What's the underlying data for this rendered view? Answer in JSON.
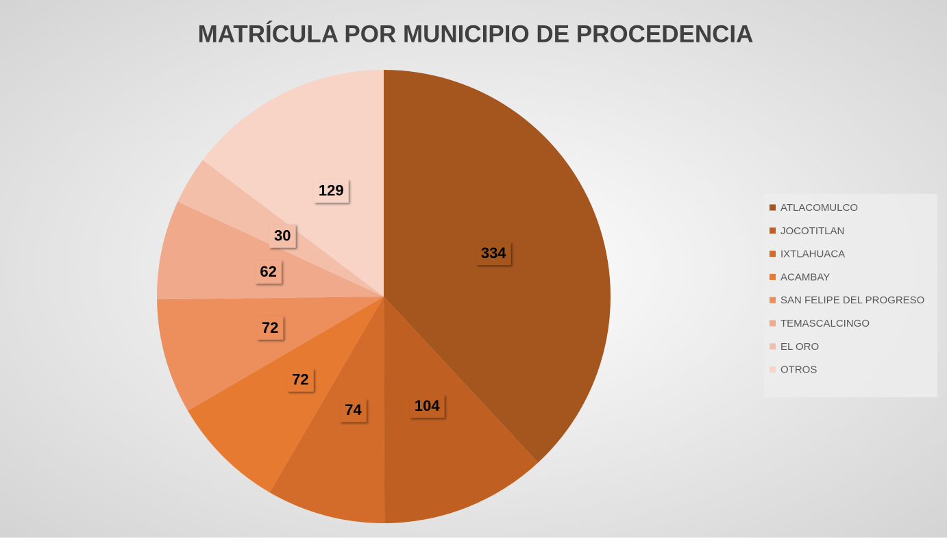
{
  "chart_data": {
    "type": "pie",
    "title": "MATRÍCULA POR MUNICIPIO DE PROCEDENCIA",
    "categories": [
      "ATLACOMULCO",
      "JOCOTITLAN",
      "IXTLAHUACA",
      "ACAMBAY",
      "SAN FELIPE DEL PROGRESO",
      "TEMASCALCINGO",
      "EL ORO",
      "OTROS"
    ],
    "values": [
      334,
      104,
      74,
      72,
      72,
      62,
      30,
      129
    ],
    "colors": [
      "#a5561f",
      "#bf5f22",
      "#d36c2a",
      "#e77a31",
      "#ec8f5c",
      "#f0a98a",
      "#f3bfa9",
      "#f7d4c6"
    ],
    "legend": "right"
  }
}
